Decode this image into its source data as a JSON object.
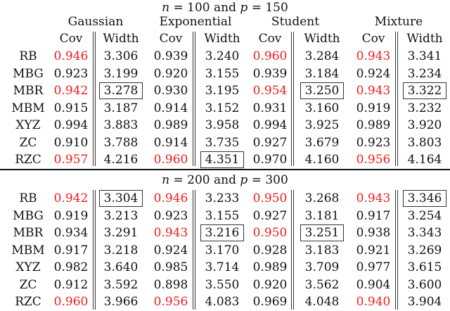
{
  "columns": {
    "distributions": [
      "Gaussian",
      "Exponential",
      "Student",
      "Mixture"
    ],
    "sub_headers": [
      "Cov",
      "Width"
    ]
  },
  "sections": [
    {
      "title": {
        "n_label": "n",
        "n_value": "= 100",
        "and": "and",
        "p_label": "p",
        "p_value": "= 150"
      },
      "rows": [
        {
          "method": "RB",
          "values": [
            "0.946",
            "3.306",
            "0.939",
            "3.240",
            "0.960",
            "3.284",
            "0.943",
            "3.341"
          ],
          "red": [
            0,
            4,
            6
          ],
          "boxed": []
        },
        {
          "method": "MBG",
          "values": [
            "0.923",
            "3.199",
            "0.920",
            "3.155",
            "0.939",
            "3.184",
            "0.924",
            "3.234"
          ],
          "red": [],
          "boxed": []
        },
        {
          "method": "MBR",
          "values": [
            "0.942",
            "3.278",
            "0.930",
            "3.195",
            "0.954",
            "3.250",
            "0.943",
            "3.322"
          ],
          "red": [
            0,
            4,
            6
          ],
          "boxed": [
            1,
            5,
            7
          ]
        },
        {
          "method": "MBM",
          "values": [
            "0.915",
            "3.187",
            "0.914",
            "3.152",
            "0.931",
            "3.160",
            "0.919",
            "3.232"
          ],
          "red": [],
          "boxed": []
        },
        {
          "method": "XYZ",
          "values": [
            "0.994",
            "3.883",
            "0.989",
            "3.958",
            "0.994",
            "3.925",
            "0.989",
            "3.920"
          ],
          "red": [],
          "boxed": []
        },
        {
          "method": "ZC",
          "values": [
            "0.910",
            "3.788",
            "0.914",
            "3.735",
            "0.927",
            "3.679",
            "0.923",
            "3.803"
          ],
          "red": [],
          "boxed": []
        },
        {
          "method": "RZC",
          "values": [
            "0.957",
            "4.216",
            "0.960",
            "4.351",
            "0.970",
            "4.160",
            "0.956",
            "4.164"
          ],
          "red": [
            0,
            2,
            6
          ],
          "boxed": [
            3
          ]
        }
      ]
    },
    {
      "title": {
        "n_label": "n",
        "n_value": "= 200",
        "and": "and",
        "p_label": "p",
        "p_value": "= 300"
      },
      "rows": [
        {
          "method": "RB",
          "values": [
            "0.942",
            "3.304",
            "0.946",
            "3.233",
            "0.950",
            "3.268",
            "0.943",
            "3.346"
          ],
          "red": [
            0,
            2,
            4,
            6
          ],
          "boxed": [
            1,
            7
          ]
        },
        {
          "method": "MBG",
          "values": [
            "0.919",
            "3.213",
            "0.923",
            "3.155",
            "0.927",
            "3.181",
            "0.917",
            "3.254"
          ],
          "red": [],
          "boxed": []
        },
        {
          "method": "MBR",
          "values": [
            "0.934",
            "3.291",
            "0.943",
            "3.216",
            "0.950",
            "3.251",
            "0.938",
            "3.343"
          ],
          "red": [
            2,
            4
          ],
          "boxed": [
            3,
            5
          ]
        },
        {
          "method": "MBM",
          "values": [
            "0.917",
            "3.218",
            "0.924",
            "3.170",
            "0.928",
            "3.183",
            "0.921",
            "3.269"
          ],
          "red": [],
          "boxed": []
        },
        {
          "method": "XYZ",
          "values": [
            "0.982",
            "3.640",
            "0.985",
            "3.714",
            "0.989",
            "3.709",
            "0.977",
            "3.615"
          ],
          "red": [],
          "boxed": []
        },
        {
          "method": "ZC",
          "values": [
            "0.912",
            "3.592",
            "0.898",
            "3.550",
            "0.920",
            "3.562",
            "0.904",
            "3.600"
          ],
          "red": [],
          "boxed": []
        },
        {
          "method": "RZC",
          "values": [
            "0.960",
            "3.966",
            "0.956",
            "4.083",
            "0.969",
            "4.048",
            "0.940",
            "3.904"
          ],
          "red": [
            0,
            2,
            6
          ],
          "boxed": []
        }
      ]
    }
  ],
  "colors": {
    "highlight_red": "#ee1c1c",
    "text": "#111111"
  }
}
